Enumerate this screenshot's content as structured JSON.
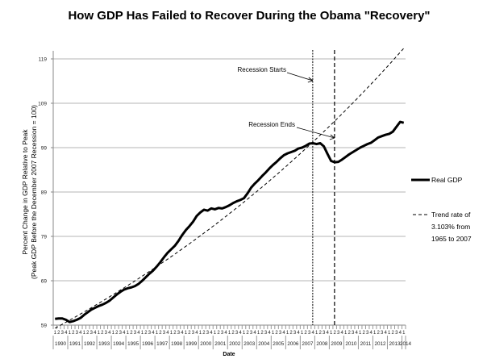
{
  "chart_data": {
    "type": "line",
    "title": "How GDP Has Failed to Recover During the Obama \"Recovery\"",
    "xlabel": "Date",
    "ylabel": [
      "Percent Change in GDP Relative to Peak",
      "(Peak GDP Before the December 2007 Recession = 100)"
    ],
    "ylim": [
      59,
      119
    ],
    "yticks": [
      59,
      69,
      79,
      89,
      99,
      109,
      119
    ],
    "grid": "horizontal",
    "start_year": 1990,
    "quarter_labels": [
      "1",
      "2",
      "3",
      "4"
    ],
    "year_labels": [
      "1990",
      "1991",
      "1992",
      "1993",
      "1994",
      "1995",
      "1996",
      "1997",
      "1998",
      "1999",
      "2000",
      "2001",
      "2002",
      "2003",
      "2004",
      "2005",
      "2006",
      "2007",
      "2008",
      "2009",
      "2010",
      "2011",
      "2012",
      "2013",
      "2014"
    ],
    "series": [
      {
        "name": "Real GDP",
        "style": "solid-thick",
        "values": [
          60.4,
          60.5,
          60.5,
          60.2,
          59.7,
          59.9,
          60.2,
          60.6,
          61.3,
          61.9,
          62.5,
          62.9,
          63.3,
          63.6,
          64.0,
          64.5,
          65.2,
          65.9,
          66.5,
          67.0,
          67.3,
          67.5,
          67.8,
          68.3,
          69.0,
          69.8,
          70.6,
          71.3,
          72.2,
          73.2,
          74.3,
          75.3,
          76.1,
          76.9,
          78.0,
          79.3,
          80.4,
          81.3,
          82.3,
          83.6,
          84.4,
          85.0,
          84.8,
          85.3,
          85.1,
          85.4,
          85.3,
          85.6,
          86.0,
          86.5,
          86.9,
          87.2,
          87.6,
          88.7,
          90.0,
          90.9,
          91.7,
          92.6,
          93.4,
          94.3,
          95.1,
          95.8,
          96.6,
          97.3,
          97.7,
          98.0,
          98.3,
          98.8,
          99.0,
          99.4,
          99.9,
          100.0,
          99.8,
          100.0,
          99.3,
          97.6,
          96.0,
          95.7,
          95.8,
          96.3,
          96.9,
          97.5,
          98.0,
          98.5,
          99.0,
          99.4,
          99.8,
          100.1,
          100.7,
          101.3,
          101.6,
          101.9,
          102.1,
          102.6,
          103.7,
          104.8,
          104.6
        ]
      },
      {
        "name": "Trend rate of 3.103% from 1965 to 2007",
        "style": "dashed",
        "base_value": 58.3,
        "annual_rate_pct": 3.103
      }
    ],
    "legend": {
      "position": "right",
      "entries": [
        "Real GDP",
        [
          "Trend rate of",
          "3.103% from",
          "1965 to 2007"
        ]
      ]
    },
    "annotations": [
      {
        "text": "Recession Starts",
        "quarter_index": 71,
        "line": "dotted"
      },
      {
        "text": "Recession Ends",
        "quarter_index": 77,
        "line": "dashed"
      }
    ]
  }
}
